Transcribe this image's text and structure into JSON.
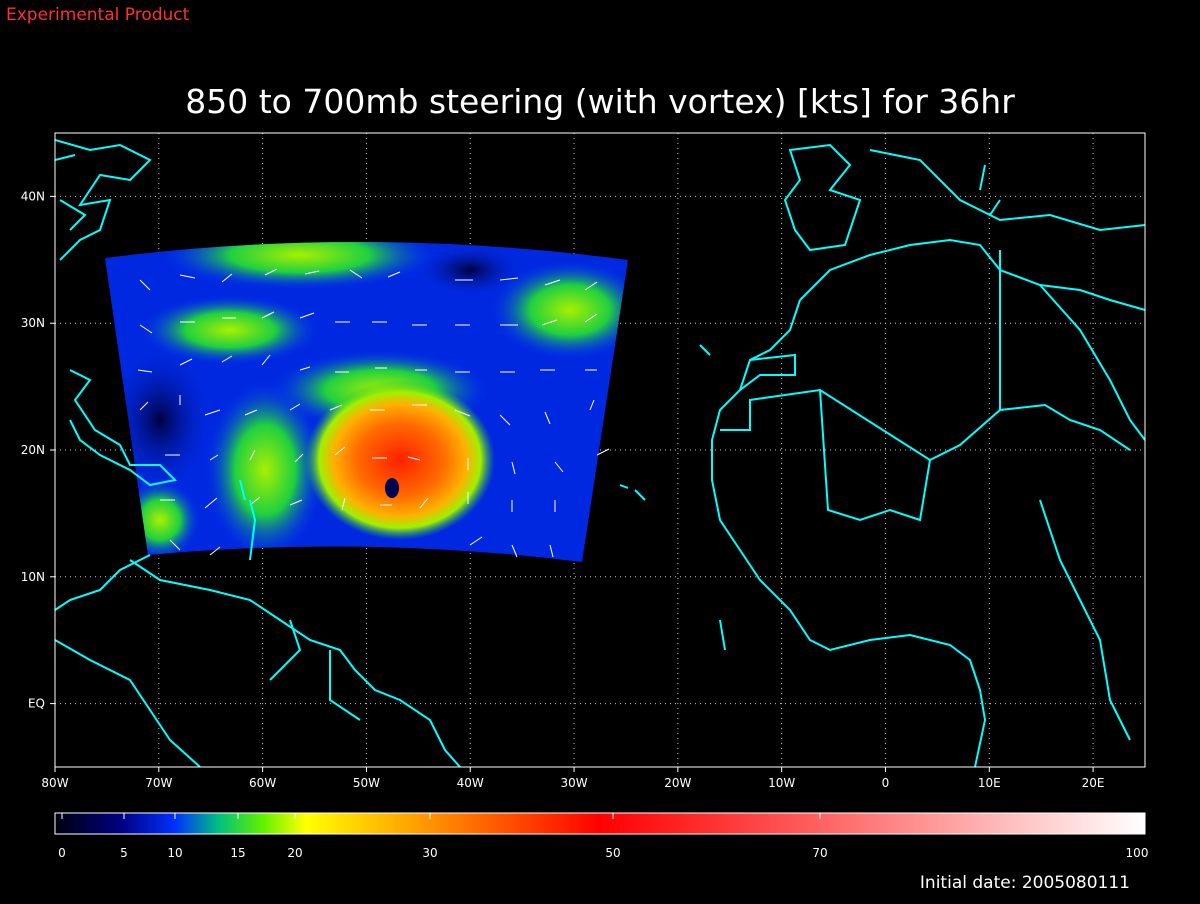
{
  "header": {
    "label": "Experimental Product"
  },
  "map": {
    "title": "850 to 700mb steering (with vortex) [kts] for 36hr",
    "xlim": [
      -80,
      25
    ],
    "ylim": [
      -5,
      45
    ],
    "xticks": [
      {
        "value": -80,
        "label": "80W"
      },
      {
        "value": -70,
        "label": "70W"
      },
      {
        "value": -60,
        "label": "60W"
      },
      {
        "value": -50,
        "label": "50W"
      },
      {
        "value": -40,
        "label": "40W"
      },
      {
        "value": -30,
        "label": "30W"
      },
      {
        "value": -20,
        "label": "20W"
      },
      {
        "value": -10,
        "label": "10W"
      },
      0,
      {
        "value": 10,
        "label": "10E"
      },
      {
        "value": 20,
        "label": "20E"
      }
    ],
    "yticks": [
      {
        "value": 0,
        "label": "EQ"
      },
      {
        "value": 10,
        "label": "10N"
      },
      {
        "value": 20,
        "label": "20N"
      },
      {
        "value": 30,
        "label": "30N"
      },
      {
        "value": 40,
        "label": "40N"
      }
    ],
    "grid": true
  },
  "colorbar": {
    "ticks": [
      0,
      5,
      10,
      15,
      20,
      30,
      50,
      70,
      100
    ]
  },
  "footer": {
    "label": "Initial date: 2005080111"
  }
}
